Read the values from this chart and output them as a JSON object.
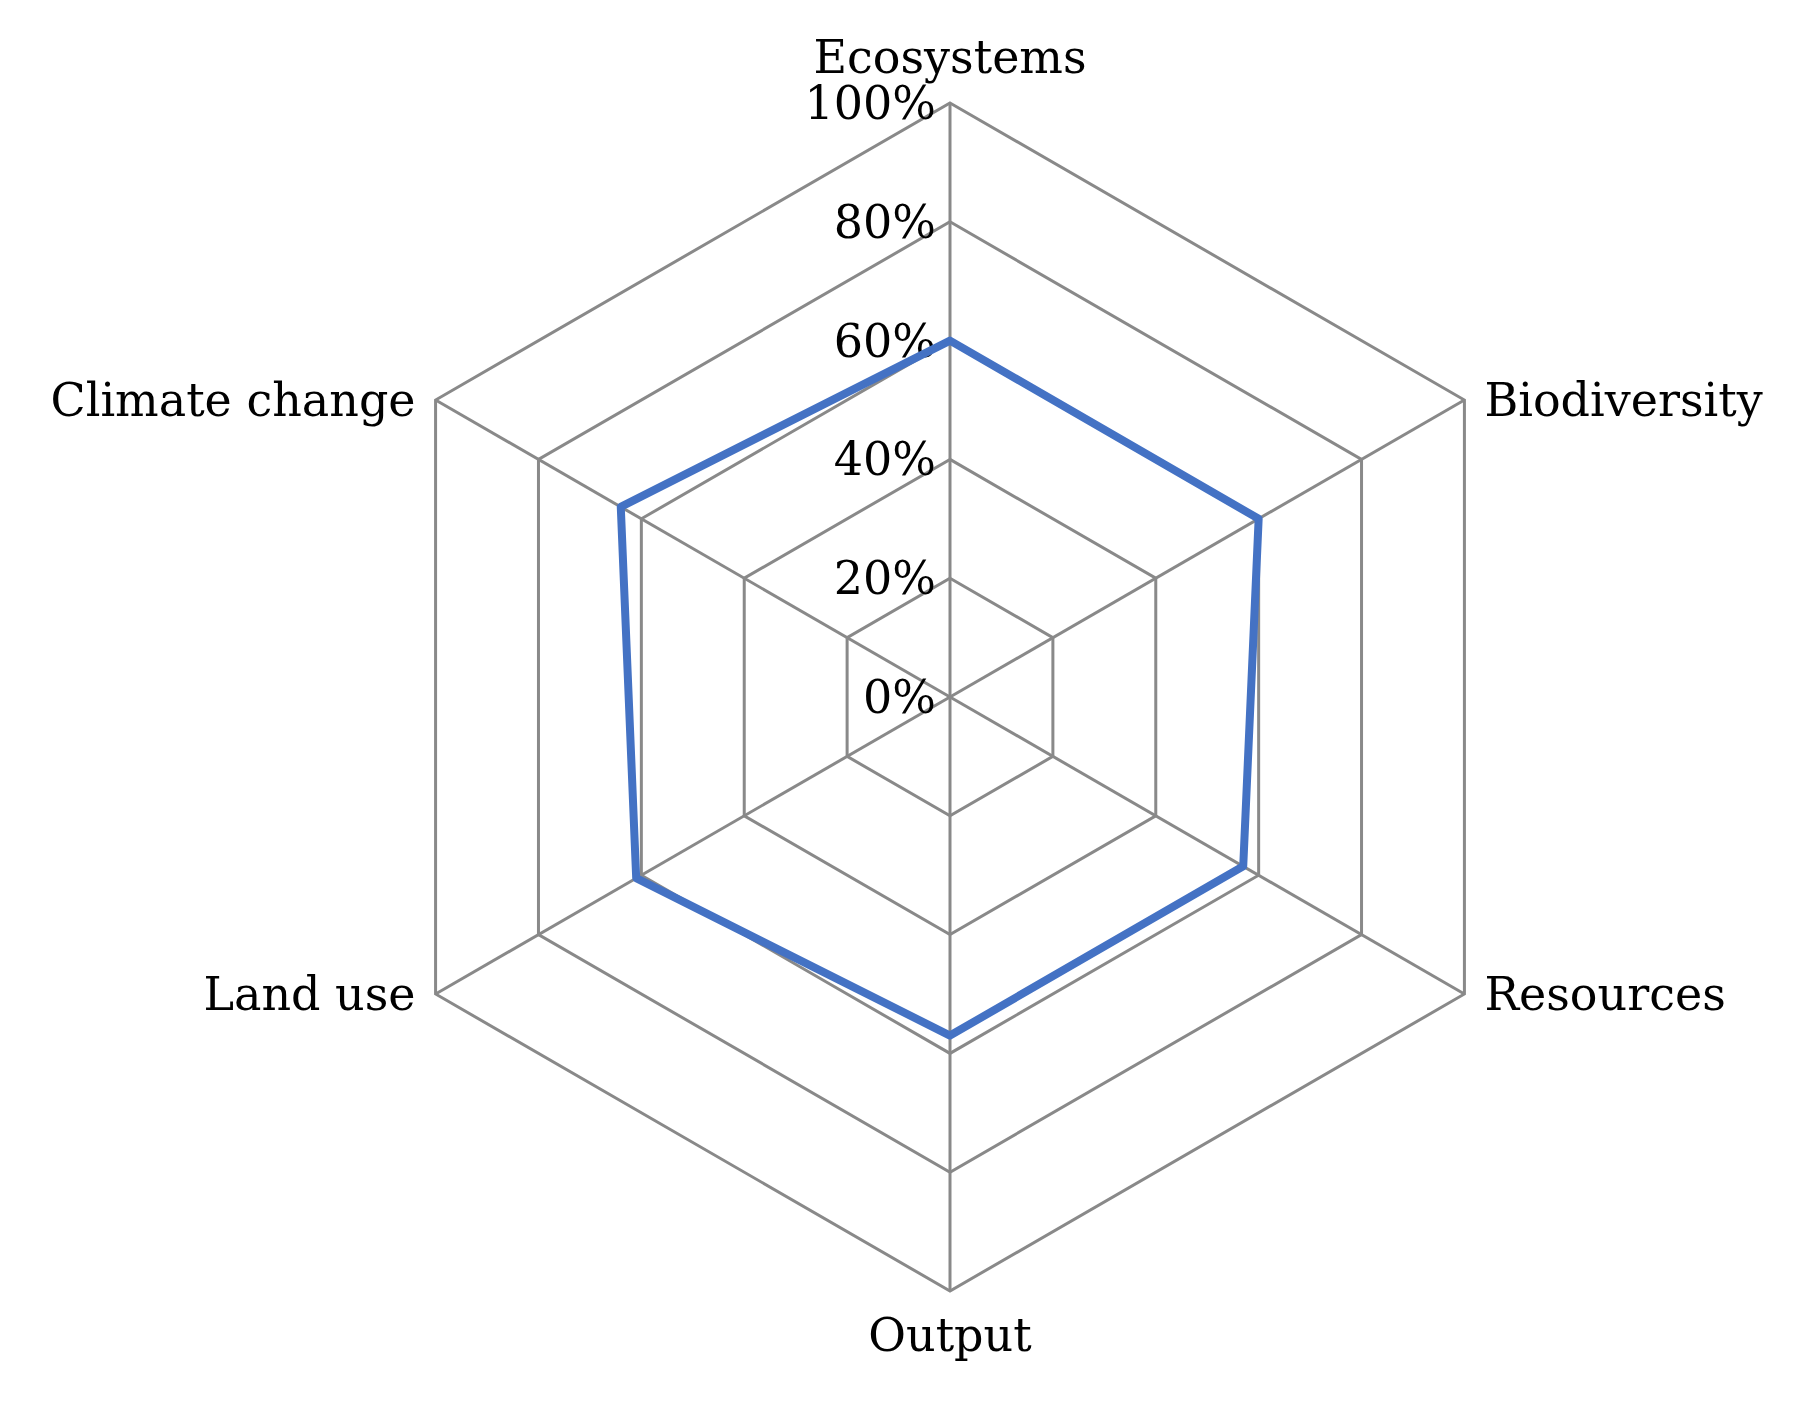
{
  "chart_data": {
    "type": "radar",
    "categories": [
      "Ecosystems",
      "Biodiversity",
      "Resources",
      "Output",
      "Land use",
      "Climate change"
    ],
    "series": [
      {
        "color": "#4472c4",
        "values": [
          60,
          60,
          57,
          57,
          61,
          64
        ]
      }
    ],
    "ylim": [
      0,
      100
    ],
    "yticks": [
      {
        "value": 0,
        "label": "0%"
      },
      {
        "value": 20,
        "label": "20%"
      },
      {
        "value": 40,
        "label": "40%"
      },
      {
        "value": 60,
        "label": "60%"
      },
      {
        "value": 80,
        "label": "80%"
      },
      {
        "value": 100,
        "label": "100%"
      }
    ],
    "grid": true,
    "marker": "none"
  }
}
